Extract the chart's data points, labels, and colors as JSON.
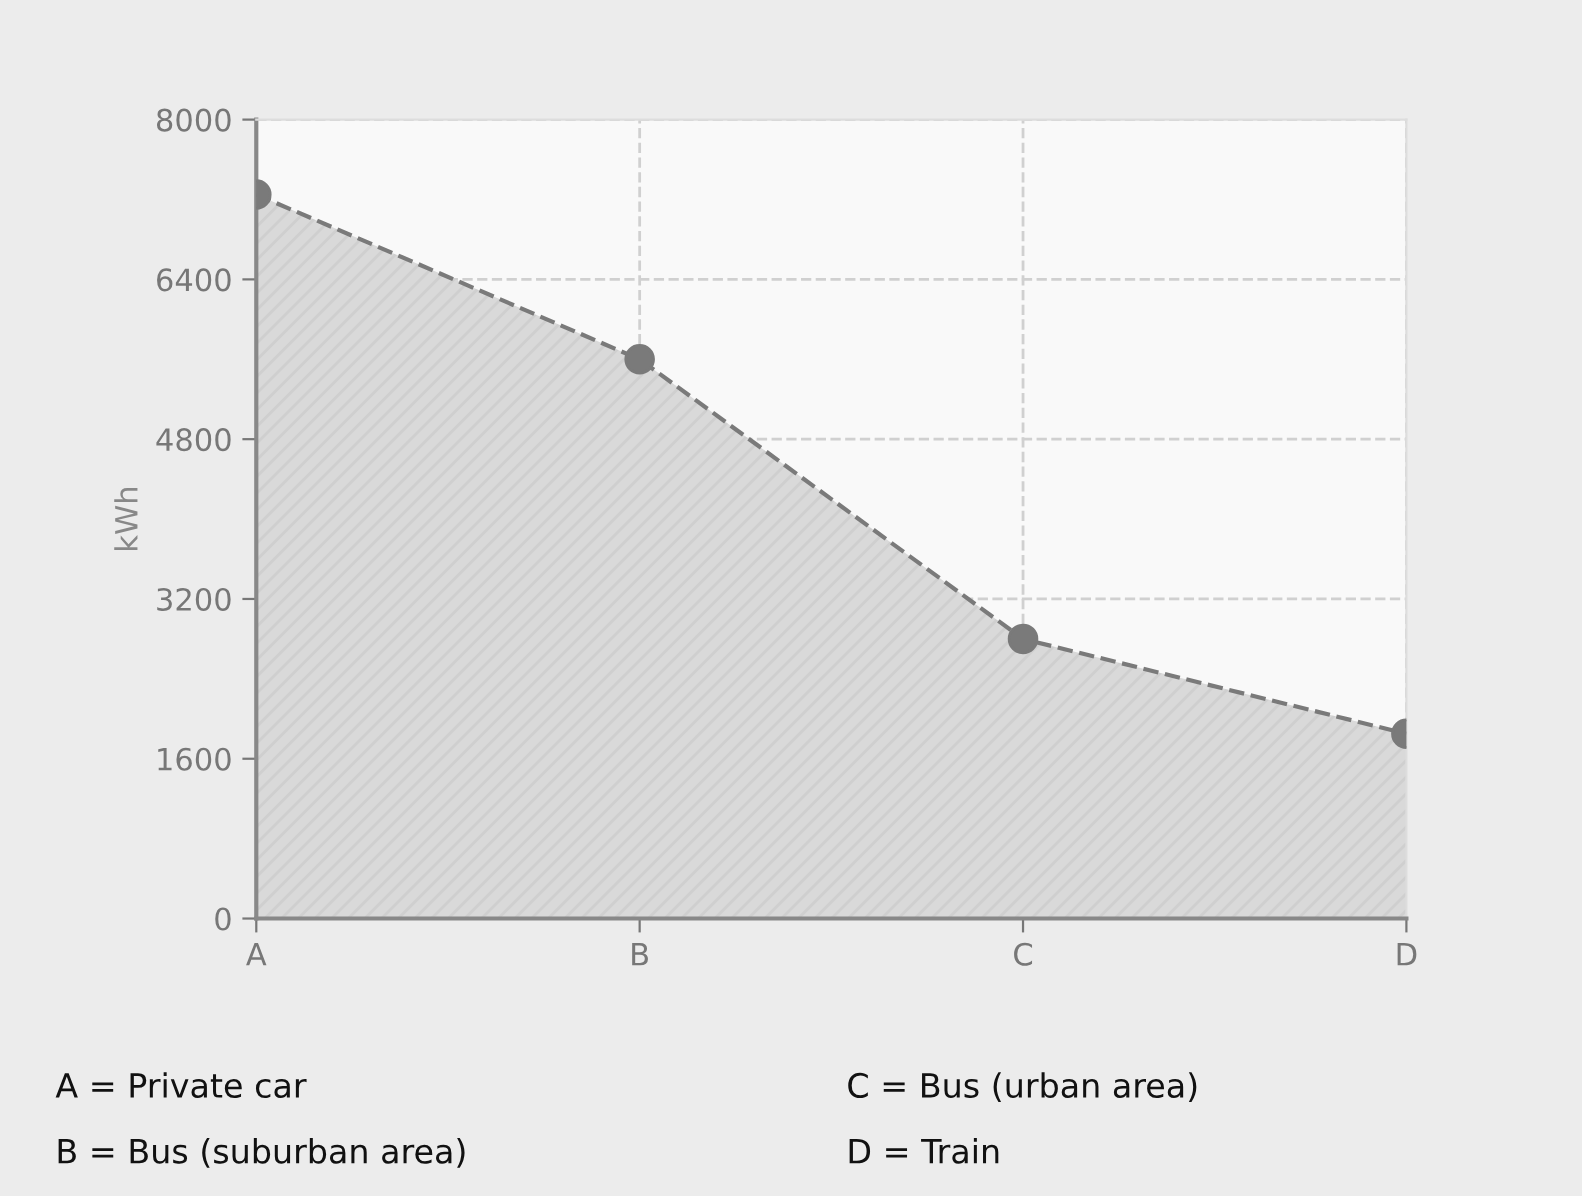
{
  "chart_data": {
    "type": "area",
    "ylabel": "kWh",
    "categories": [
      "A",
      "B",
      "C",
      "D"
    ],
    "series": [
      {
        "color": "#7a7a7a",
        "values": [
          7250,
          5600,
          2800,
          1850
        ]
      }
    ],
    "ylim": [
      0,
      8000
    ],
    "yticks": [
      0,
      1600,
      3200,
      4800,
      6400,
      8000
    ],
    "grid": true,
    "marker": "circle",
    "line_style": "dashed",
    "legend": false,
    "annotations": [
      "A = Private car",
      "B = Bus (suburban area)",
      "C = Bus (urban area)",
      "D = Train"
    ]
  }
}
